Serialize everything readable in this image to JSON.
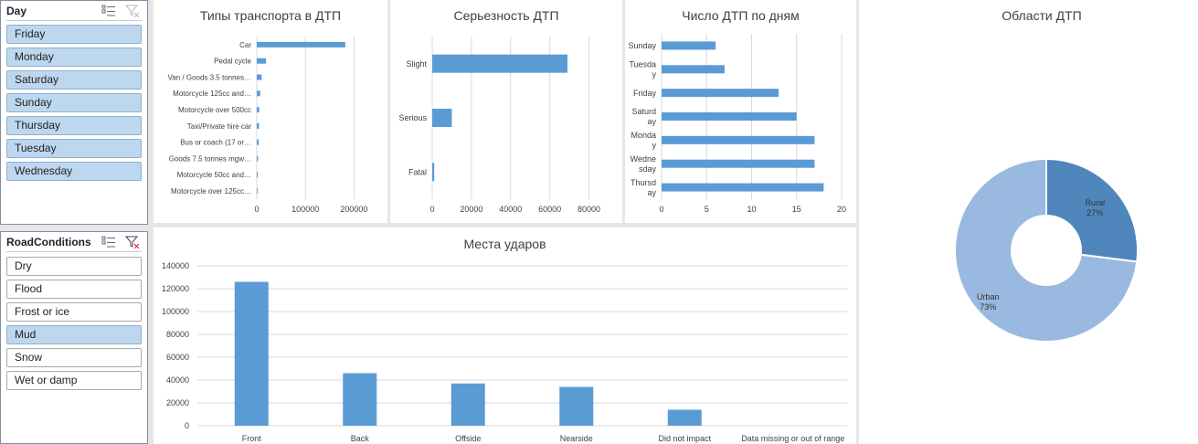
{
  "colors": {
    "bar": "#5b9bd5",
    "rural": "#4f86bc",
    "urban": "#9ab9e0",
    "grid": "#d9d9d9",
    "selected_item": "#bdd7ee"
  },
  "icons": {
    "multi_select": "multi-select-icon",
    "clear_filter": "clear-filter-icon"
  },
  "day_slicer": {
    "title": "Day",
    "items": [
      {
        "label": "Friday",
        "selected": true
      },
      {
        "label": "Monday",
        "selected": true
      },
      {
        "label": "Saturday",
        "selected": true
      },
      {
        "label": "Sunday",
        "selected": true
      },
      {
        "label": "Thursday",
        "selected": true
      },
      {
        "label": "Tuesday",
        "selected": true
      },
      {
        "label": "Wednesday",
        "selected": true
      }
    ]
  },
  "road_slicer": {
    "title": "RoadConditions",
    "items": [
      {
        "label": "Dry",
        "selected": false
      },
      {
        "label": "Flood",
        "selected": false
      },
      {
        "label": "Frost or ice",
        "selected": false
      },
      {
        "label": "Mud",
        "selected": true
      },
      {
        "label": "Snow",
        "selected": false
      },
      {
        "label": "Wet or damp",
        "selected": false
      }
    ]
  },
  "chart_data": [
    {
      "id": "vehicle",
      "type": "bar",
      "orientation": "horizontal",
      "title": "Типы транспорта в ДТП",
      "categories": [
        "Car",
        "Pedal cycle",
        "Van / Goods 3.5 tonnes…",
        "Motorcycle 125cc and…",
        "Motorcycle over 500cc",
        "Taxi/Private hire car",
        "Bus or coach (17 or…",
        "Goods 7.5 tonnes mgw…",
        "Motorcycle 50cc and…",
        "Motorcycle over 125cc…"
      ],
      "values": [
        182000,
        19000,
        10000,
        7000,
        5000,
        4500,
        4000,
        2500,
        2000,
        1500
      ],
      "xlim": [
        0,
        250000
      ],
      "ticks": [
        "0",
        "100000",
        "200000"
      ],
      "tick_values": [
        0,
        100000,
        200000
      ],
      "grid": true
    },
    {
      "id": "severity",
      "type": "bar",
      "orientation": "horizontal",
      "title": "Серьезность ДТП",
      "categories": [
        "Slight",
        "Serious",
        "Fatal"
      ],
      "values": [
        69000,
        10000,
        1000
      ],
      "xlim": [
        0,
        90000
      ],
      "ticks": [
        "0",
        "20000",
        "40000",
        "60000",
        "80000"
      ],
      "tick_values": [
        0,
        20000,
        40000,
        60000,
        80000
      ],
      "grid": true
    },
    {
      "id": "days",
      "type": "bar",
      "orientation": "horizontal",
      "title": "Число ДТП по дням",
      "categories": [
        [
          "Sunday"
        ],
        [
          "Tuesda",
          "y"
        ],
        [
          "Friday"
        ],
        [
          "Saturd",
          "ay"
        ],
        [
          "Monda",
          "y"
        ],
        [
          "Wedne",
          "sday"
        ],
        [
          "Thursd",
          "ay"
        ]
      ],
      "values": [
        6,
        7,
        13,
        15,
        17,
        17,
        18
      ],
      "xlim": [
        0,
        20
      ],
      "ticks": [
        "0",
        "5",
        "10",
        "15",
        "20"
      ],
      "tick_values": [
        0,
        5,
        10,
        15,
        20
      ],
      "grid": true
    },
    {
      "id": "impact",
      "type": "bar",
      "orientation": "vertical",
      "title": "Места ударов",
      "categories": [
        "Front",
        "Back",
        "Offside",
        "Nearside",
        "Did not impact",
        "Data missing or out of range"
      ],
      "values": [
        126000,
        46000,
        37000,
        34000,
        14000,
        0
      ],
      "ylim": [
        0,
        140000
      ],
      "ticks": [
        "0",
        "20000",
        "40000",
        "60000",
        "80000",
        "100000",
        "120000",
        "140000"
      ],
      "tick_values": [
        0,
        20000,
        40000,
        60000,
        80000,
        100000,
        120000,
        140000
      ],
      "grid": true
    },
    {
      "id": "area",
      "type": "pie",
      "title": "Области ДТП",
      "categories": [
        "Rural",
        "Urban"
      ],
      "values": [
        27,
        73
      ],
      "labels": [
        [
          "Rural",
          "27%"
        ],
        [
          "Urban",
          "73%"
        ]
      ]
    }
  ]
}
